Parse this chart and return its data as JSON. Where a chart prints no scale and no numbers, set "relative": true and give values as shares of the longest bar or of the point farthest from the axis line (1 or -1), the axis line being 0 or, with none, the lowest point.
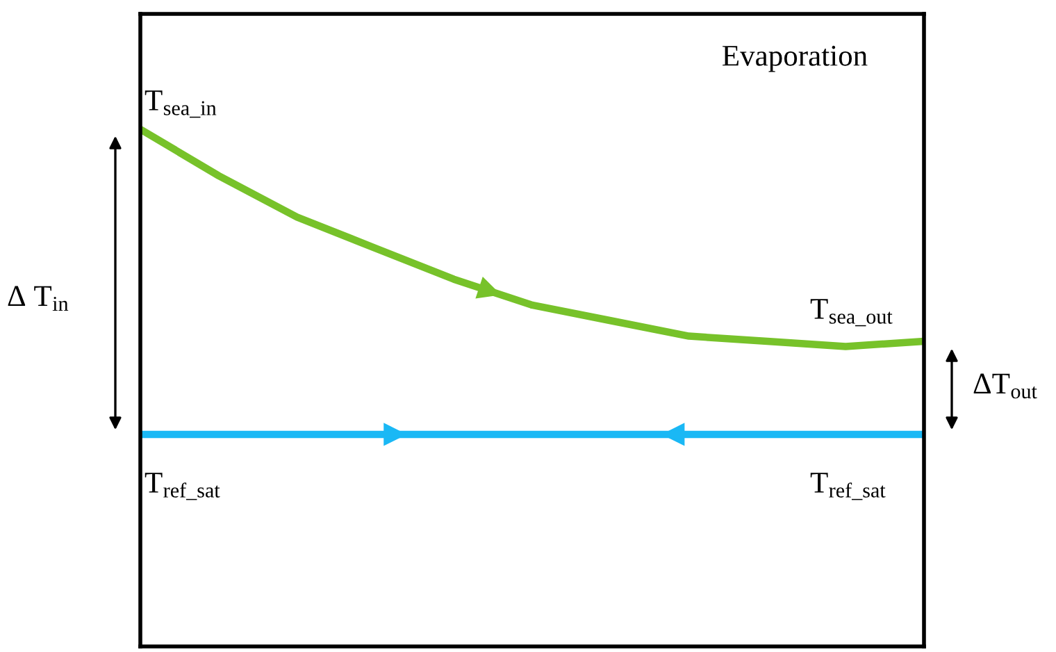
{
  "chart_data": {
    "type": "line",
    "relative": true,
    "marker": "none",
    "line_style": "solid",
    "categories": [
      null,
      null,
      null,
      null,
      null,
      null,
      null,
      null,
      null,
      null,
      null
    ],
    "series": [
      {
        "color": "#77c22a",
        "values": [
          1.0,
          0.91,
          0.83,
          0.77,
          0.71,
          0.66,
          0.63,
          0.6,
          0.59,
          0.58,
          0.59
        ]
      },
      {
        "color": "#1ab8f5",
        "values": [
          0.41,
          0.41,
          0.41,
          0.41,
          0.41,
          0.41,
          0.41,
          0.41,
          0.41,
          0.41,
          0.41
        ]
      }
    ],
    "annotations": [
      "Evaporation",
      "T$_{sea_in}$",
      "T$_{sea_out}$",
      "T$_{ref_sat}$",
      "T$_{ref_sat}$",
      "Δ T$_{in}$",
      "ΔT$_{out}$"
    ]
  }
}
